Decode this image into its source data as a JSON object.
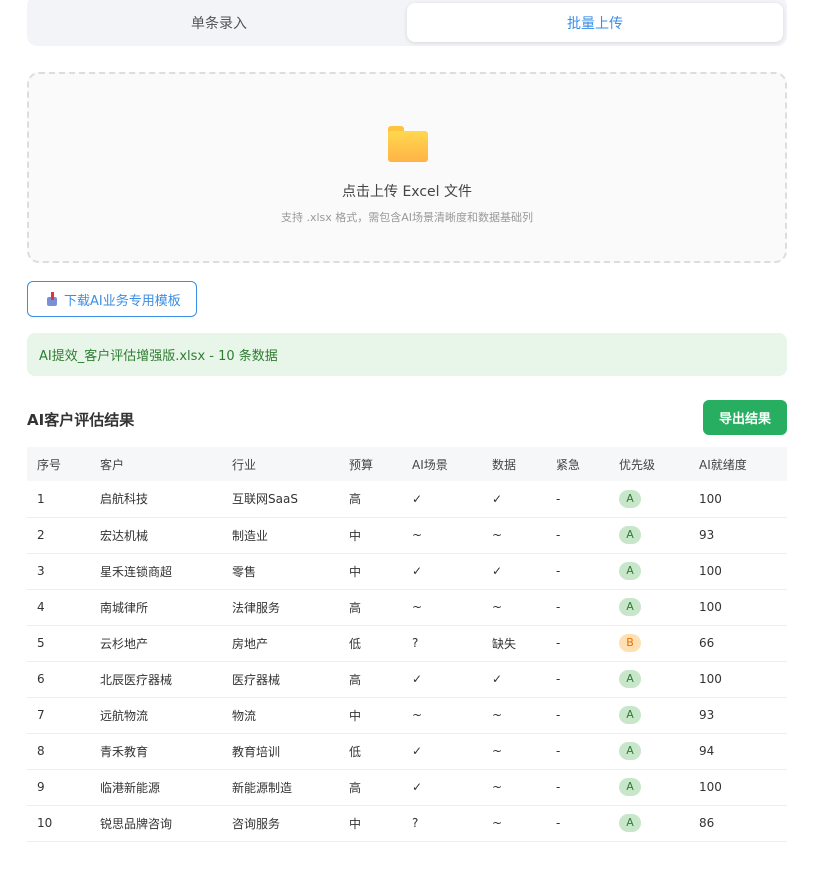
{
  "tabs": [
    {
      "label": "单条录入",
      "active": false
    },
    {
      "label": "批量上传",
      "active": true
    }
  ],
  "upload": {
    "icon": "folder-icon",
    "title": "点击上传 Excel 文件",
    "hint": "支持 .xlsx 格式，需包含AI场景清晰度和数据基础列"
  },
  "download_button": "下载AI业务专用模板",
  "file_info": "AI提效_客户评估增强版.xlsx - 10 条数据",
  "results": {
    "title": "AI客户评估结果",
    "export_label": "导出结果",
    "columns": [
      "序号",
      "客户",
      "行业",
      "预算",
      "AI场景",
      "数据",
      "紧急",
      "优先级",
      "AI就绪度"
    ],
    "rows": [
      [
        "1",
        "启航科技",
        "互联网SaaS",
        "高",
        "✓",
        "✓",
        "-",
        "A",
        "100"
      ],
      [
        "2",
        "宏达机械",
        "制造业",
        "中",
        "~",
        "~",
        "-",
        "A",
        "93"
      ],
      [
        "3",
        "星禾连锁商超",
        "零售",
        "中",
        "✓",
        "✓",
        "-",
        "A",
        "100"
      ],
      [
        "4",
        "南城律所",
        "法律服务",
        "高",
        "~",
        "~",
        "-",
        "A",
        "100"
      ],
      [
        "5",
        "云杉地产",
        "房地产",
        "低",
        "?",
        "缺失",
        "-",
        "B",
        "66"
      ],
      [
        "6",
        "北辰医疗器械",
        "医疗器械",
        "高",
        "✓",
        "✓",
        "-",
        "A",
        "100"
      ],
      [
        "7",
        "远航物流",
        "物流",
        "中",
        "~",
        "~",
        "-",
        "A",
        "93"
      ],
      [
        "8",
        "青禾教育",
        "教育培训",
        "低",
        "✓",
        "~",
        "-",
        "A",
        "94"
      ],
      [
        "9",
        "临港新能源",
        "新能源制造",
        "高",
        "✓",
        "~",
        "-",
        "A",
        "100"
      ],
      [
        "10",
        "锐思品牌咨询",
        "咨询服务",
        "中",
        "?",
        "~",
        "-",
        "A",
        "86"
      ]
    ]
  },
  "colors": {
    "accent": "#3a8ee6",
    "export": "#27ae60",
    "priority_a": "#c8e6c9",
    "priority_b": "#ffe0b2"
  }
}
